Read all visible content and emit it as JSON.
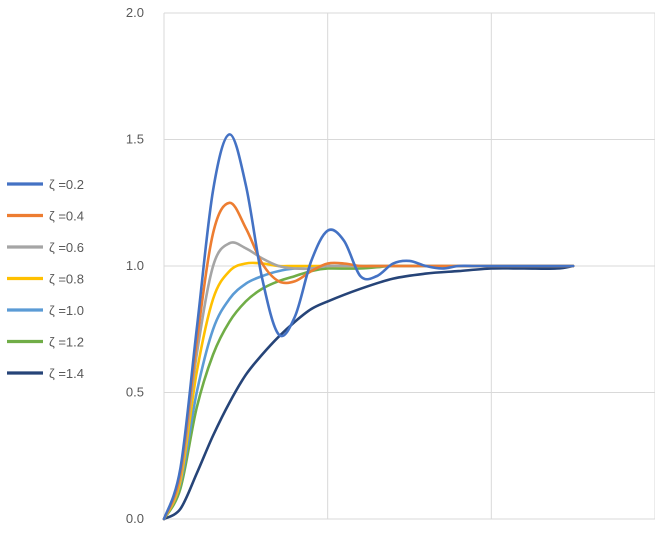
{
  "chart_data": {
    "type": "line",
    "title": "",
    "xlabel": "",
    "ylabel": "",
    "ylim": [
      0,
      2
    ],
    "xlim": [
      0,
      15
    ],
    "y_ticks": [
      "0.0",
      "0.5",
      "1.0",
      "1.5",
      "2.0"
    ],
    "x_gridlines": [
      5,
      10,
      15
    ],
    "grid": true,
    "legend_position": "left",
    "series": [
      {
        "name": "ζ =0.2",
        "color": "#4472C4",
        "x": [
          0,
          0.5,
          1,
          1.5,
          2,
          2.5,
          3,
          3.5,
          4,
          4.5,
          5,
          5.5,
          6,
          6.5,
          7,
          7.5,
          8,
          8.5,
          9,
          9.5,
          10,
          10.5,
          11,
          11.5,
          12,
          12.5
        ],
        "y": [
          0.0,
          0.2,
          0.75,
          1.3,
          1.52,
          1.32,
          0.95,
          0.73,
          0.8,
          1.02,
          1.14,
          1.1,
          0.96,
          0.96,
          1.01,
          1.02,
          1.0,
          0.99,
          1.0,
          1.0,
          1.0,
          1.0,
          1.0,
          1.0,
          1.0,
          1.0
        ]
      },
      {
        "name": "ζ =0.4",
        "color": "#ED7D31",
        "x": [
          0,
          0.5,
          1,
          1.5,
          2,
          2.5,
          3,
          3.5,
          4,
          4.5,
          5,
          5.5,
          6,
          6.5,
          7,
          7.5,
          8,
          9,
          10,
          11,
          12,
          12.5
        ],
        "y": [
          0.0,
          0.18,
          0.7,
          1.13,
          1.25,
          1.15,
          1.01,
          0.94,
          0.94,
          0.98,
          1.01,
          1.01,
          1.0,
          1.0,
          1.0,
          1.0,
          1.0,
          1.0,
          1.0,
          1.0,
          1.0,
          1.0
        ]
      },
      {
        "name": "ζ =0.6",
        "color": "#A5A5A5",
        "x": [
          0,
          0.5,
          1,
          1.5,
          2,
          2.5,
          3,
          3.5,
          4,
          4.5,
          5,
          6,
          7,
          8,
          9,
          10,
          11,
          12,
          12.5
        ],
        "y": [
          0.0,
          0.17,
          0.65,
          1.0,
          1.09,
          1.07,
          1.03,
          1.0,
          0.99,
          0.99,
          1.0,
          1.0,
          1.0,
          1.0,
          1.0,
          1.0,
          1.0,
          1.0,
          1.0
        ]
      },
      {
        "name": "ζ =0.8",
        "color": "#FFC000",
        "x": [
          0,
          0.5,
          1,
          1.5,
          2,
          2.5,
          3,
          3.5,
          4,
          5,
          6,
          7,
          8,
          9,
          10,
          11,
          12,
          12.5
        ],
        "y": [
          0.0,
          0.15,
          0.58,
          0.87,
          0.98,
          1.01,
          1.01,
          1.0,
          1.0,
          1.0,
          1.0,
          1.0,
          1.0,
          1.0,
          1.0,
          1.0,
          1.0,
          1.0
        ]
      },
      {
        "name": "ζ =1.0",
        "color": "#5B9BD5",
        "x": [
          0,
          0.5,
          1,
          1.5,
          2,
          2.5,
          3,
          3.5,
          4,
          4.5,
          5,
          6,
          7,
          8,
          9,
          10,
          11,
          12,
          12.5
        ],
        "y": [
          0.0,
          0.14,
          0.5,
          0.75,
          0.87,
          0.93,
          0.96,
          0.98,
          0.99,
          0.99,
          1.0,
          1.0,
          1.0,
          1.0,
          1.0,
          1.0,
          1.0,
          1.0,
          1.0
        ]
      },
      {
        "name": "ζ =1.2",
        "color": "#70AD47",
        "x": [
          0,
          0.5,
          1,
          1.5,
          2,
          2.5,
          3,
          3.5,
          4,
          4.5,
          5,
          6,
          7,
          8,
          9,
          10,
          11,
          12,
          12.5
        ],
        "y": [
          0.0,
          0.12,
          0.44,
          0.65,
          0.78,
          0.86,
          0.91,
          0.94,
          0.96,
          0.98,
          0.99,
          0.99,
          1.0,
          1.0,
          1.0,
          1.0,
          1.0,
          1.0,
          1.0
        ]
      },
      {
        "name": "ζ =1.4",
        "color": "#264478",
        "x": [
          0,
          0.5,
          1,
          1.5,
          2,
          2.5,
          3,
          3.5,
          4,
          4.5,
          5,
          6,
          7,
          8,
          9,
          10,
          11,
          12,
          12.5
        ],
        "y": [
          0.0,
          0.04,
          0.18,
          0.33,
          0.46,
          0.57,
          0.65,
          0.72,
          0.78,
          0.83,
          0.86,
          0.91,
          0.95,
          0.97,
          0.98,
          0.99,
          0.99,
          0.99,
          1.0
        ]
      }
    ]
  }
}
